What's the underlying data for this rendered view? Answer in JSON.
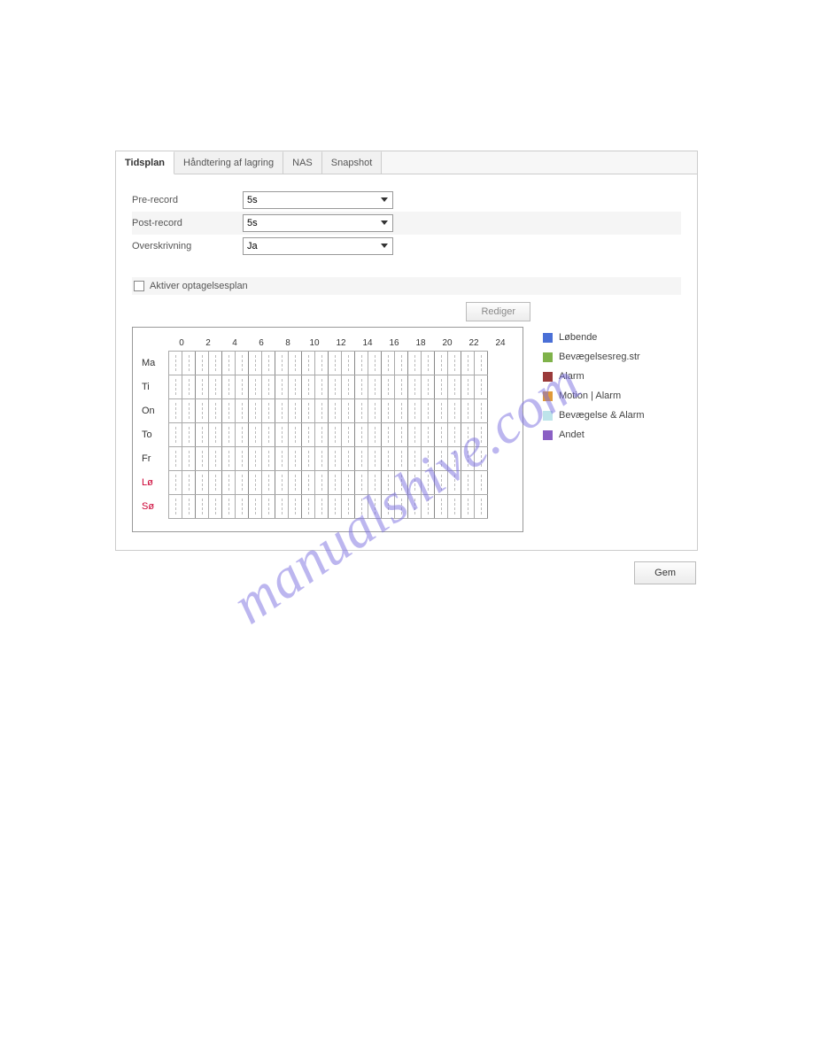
{
  "watermark": "manualshive.com",
  "tabs": [
    {
      "label": "Tidsplan",
      "active": true
    },
    {
      "label": "Håndtering af lagring",
      "active": false
    },
    {
      "label": "NAS",
      "active": false
    },
    {
      "label": "Snapshot",
      "active": false
    }
  ],
  "form": {
    "pre_record": {
      "label": "Pre-record",
      "value": "5s"
    },
    "post_record": {
      "label": "Post-record",
      "value": "5s"
    },
    "overwrite": {
      "label": "Overskrivning",
      "value": "Ja"
    }
  },
  "enable_checkbox": {
    "label": "Aktiver optagelsesplan",
    "checked": false
  },
  "edit_button": "Rediger",
  "save_button": "Gem",
  "schedule": {
    "hour_labels": [
      "0",
      "2",
      "4",
      "6",
      "8",
      "10",
      "12",
      "14",
      "16",
      "18",
      "20",
      "22",
      "24"
    ],
    "days": [
      {
        "code": "Ma",
        "weekend": false
      },
      {
        "code": "Ti",
        "weekend": false
      },
      {
        "code": "On",
        "weekend": false
      },
      {
        "code": "To",
        "weekend": false
      },
      {
        "code": "Fr",
        "weekend": false
      },
      {
        "code": "Lø",
        "weekend": true
      },
      {
        "code": "Sø",
        "weekend": true
      }
    ],
    "columns": 24,
    "grid_color": "#aaaaaa",
    "dashed_color": "#bbbbbb"
  },
  "legend": [
    {
      "label": "Løbende",
      "color": "#4a6fd6"
    },
    {
      "label": "Bevægelsesreg.str",
      "color": "#7fb24a"
    },
    {
      "label": "Alarm",
      "color": "#9a3a3a"
    },
    {
      "label": "Motion | Alarm",
      "color": "#e09a3a"
    },
    {
      "label": "Bevægelse & Alarm",
      "color": "#bde4ea"
    },
    {
      "label": "Andet",
      "color": "#8a5fc4"
    }
  ],
  "colors": {
    "panel_border": "#cccccc",
    "tab_bg": "#f1f1f1",
    "tab_active_bg": "#ffffff",
    "shaded_row": "#f5f5f5",
    "text": "#555555",
    "weekend_text": "#cc0033",
    "watermark": "#7b6fe0"
  }
}
